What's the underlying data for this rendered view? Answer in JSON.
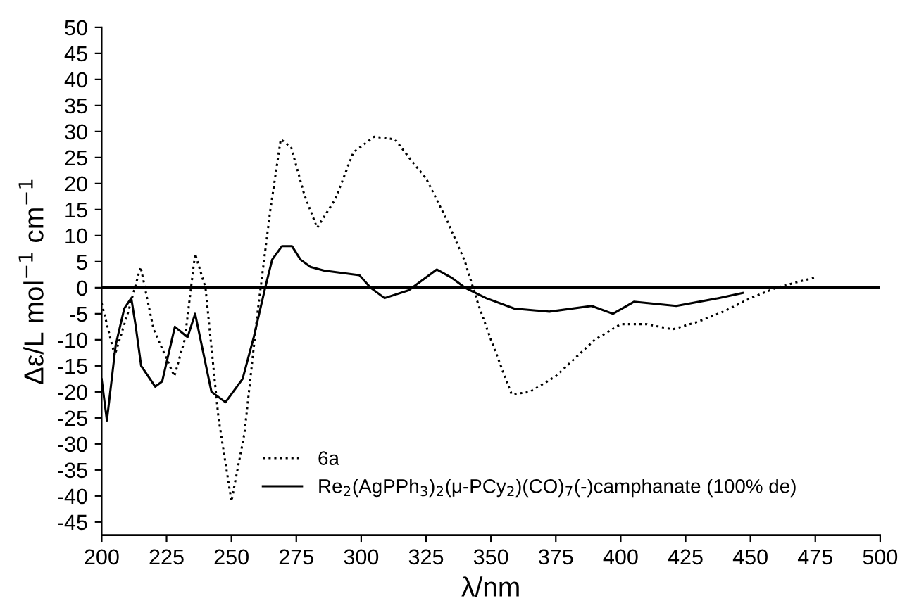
{
  "chart_data": {
    "type": "line",
    "xlabel": "λ/nm",
    "ylabel": "Δε/L mol$^{−1}$ cm$^{−1}$",
    "xlim": [
      200,
      500
    ],
    "ylim": [
      -47.5,
      50
    ],
    "xticks": [
      200,
      225,
      250,
      275,
      300,
      325,
      350,
      375,
      400,
      425,
      450,
      475,
      500
    ],
    "yticks": [
      -45,
      -40,
      -35,
      -30,
      -25,
      -20,
      -15,
      -10,
      -5,
      0,
      5,
      10,
      15,
      20,
      25,
      30,
      35,
      40,
      45,
      50
    ],
    "grid": false,
    "legend": "bottom",
    "ref_lines": [
      {
        "axis": "y",
        "value": 0,
        "color": "#000000",
        "line_style": "solid"
      }
    ],
    "series": [
      {
        "name": "6a",
        "color": "#000000",
        "line_style": "dotted",
        "x": [
          200,
          205,
          210,
          215,
          220,
          228,
          232,
          236,
          240,
          245,
          250,
          255,
          260,
          265,
          269,
          273,
          278,
          283,
          290,
          297,
          305,
          313,
          320,
          325,
          333,
          340,
          345,
          350,
          358,
          365,
          375,
          390,
          400,
          410,
          420,
          430,
          440,
          450,
          460,
          475
        ],
        "values": [
          -3,
          -13,
          -5,
          4,
          -8,
          -17,
          -10,
          6.5,
          0,
          -25,
          -41,
          -28,
          -5,
          15,
          28.5,
          27,
          18,
          11.5,
          17,
          26,
          29,
          28.5,
          24,
          21,
          13,
          5,
          -3,
          -10,
          -20.5,
          -20,
          -17,
          -10,
          -7,
          -7,
          -8,
          -6.5,
          -4.5,
          -2,
          0,
          2
        ]
      },
      {
        "name": "Re$_{2}$(AgPPh$_{3}$)$_{2}$(μ-PCy$_{2}$)(CO)$_{7}$(-)camphanate (100% de)",
        "color": "#000000",
        "line_style": "solid",
        "x": [
          200,
          202,
          205.4,
          208.7,
          211.4,
          213,
          215.2,
          220.6,
          223.3,
          228.2,
          233.1,
          236,
          242.3,
          247.7,
          254.3,
          258.6,
          263,
          265.7,
          269.5,
          273.3,
          276.6,
          280.4,
          285.7,
          299.3,
          303.6,
          309,
          318.3,
          329.1,
          334.6,
          340,
          348.1,
          359,
          372.5,
          388.8,
          397,
          405.1,
          421.4,
          437.7,
          447
        ],
        "values": [
          -17.6,
          -25.5,
          -11,
          -4,
          -2,
          -7,
          -15,
          -19,
          -18,
          -7.5,
          -9.5,
          -5,
          -20,
          -22,
          -17.5,
          -9.5,
          0,
          5.4,
          8,
          8,
          5.4,
          4,
          3.3,
          2.4,
          0,
          -2,
          -0.5,
          3.5,
          2,
          0,
          -2,
          -4,
          -4.6,
          -3.5,
          -5,
          -2.7,
          -3.5,
          -2,
          -1
        ]
      }
    ]
  }
}
